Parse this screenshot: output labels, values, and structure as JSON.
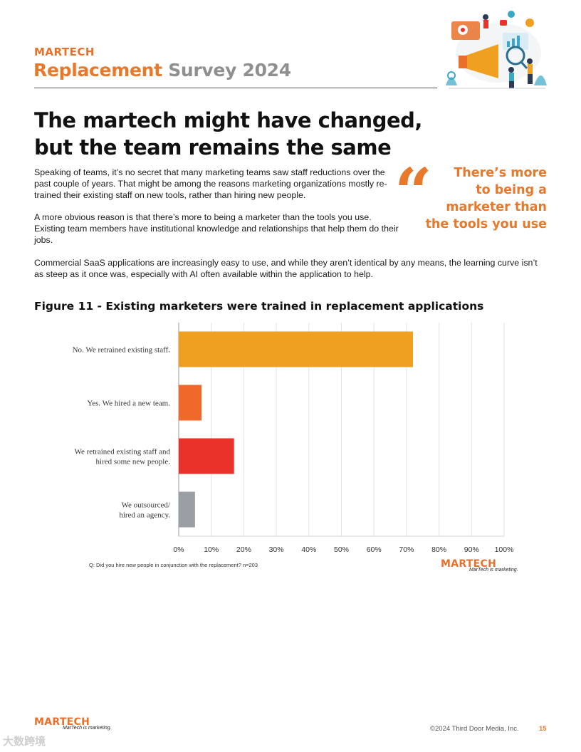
{
  "header": {
    "brand": "MARTECH",
    "title_part1": "Replacement",
    "title_part2": "Survey 2024"
  },
  "headline": {
    "line1": "The martech might have changed,",
    "line2": "but the team remains the same"
  },
  "paragraphs": [
    "Speaking of teams, it’s no secret that many marketing teams saw staff reductions over the past couple of years. That might be among the reasons marketing organizations mostly re-trained their existing staff on new tools, rather than hiring new people.",
    "A more obvious reason is that there’s more to being a marketer than the tools you use. Existing team members have institutional knowledge and relationships that help them do their jobs.",
    "Commercial SaaS applications are increasingly easy to use, and while they aren’t identical by any means, the learning curve isn’t as steep as it once was, especially with AI often available within the application to help."
  ],
  "pull_quote": {
    "mark": "“",
    "lines": [
      "There’s more",
      "to being a",
      "marketer than",
      "the tools you use"
    ]
  },
  "figure": {
    "title": "Figure 11 - Existing marketers were trained in replacement applications",
    "question_note": "Q: Did you hire new people in conjunction with the replacement? n=203"
  },
  "chart_data": {
    "type": "bar",
    "orientation": "horizontal",
    "title": "Figure 11 - Existing marketers were trained in replacement applications",
    "categories": [
      [
        "No. We retrained existing staff."
      ],
      [
        "Yes. We hired a new team."
      ],
      [
        "We retrained existing staff and",
        "hired some new people."
      ],
      [
        "We outsourced/",
        "hired an agency."
      ]
    ],
    "values": [
      72,
      7,
      17,
      5
    ],
    "colors": [
      "#f0a020",
      "#ef6a2a",
      "#e8322a",
      "#9b9ea4"
    ],
    "xlim": [
      0,
      100
    ],
    "xticks": [
      "0%",
      "10%",
      "20%",
      "30%",
      "40%",
      "50%",
      "60%",
      "70%",
      "80%",
      "90%",
      "100%"
    ],
    "grid": true,
    "legend": "none"
  },
  "chart_logo": {
    "brand": "MARTECH",
    "tagline": "MarTech is marketing."
  },
  "footer": {
    "brand": "MARTECH",
    "tagline": "MarTech is marketing.",
    "copyright": "©2024 Third Door Media, Inc.",
    "page": "15"
  },
  "watermark": "大数跨境"
}
